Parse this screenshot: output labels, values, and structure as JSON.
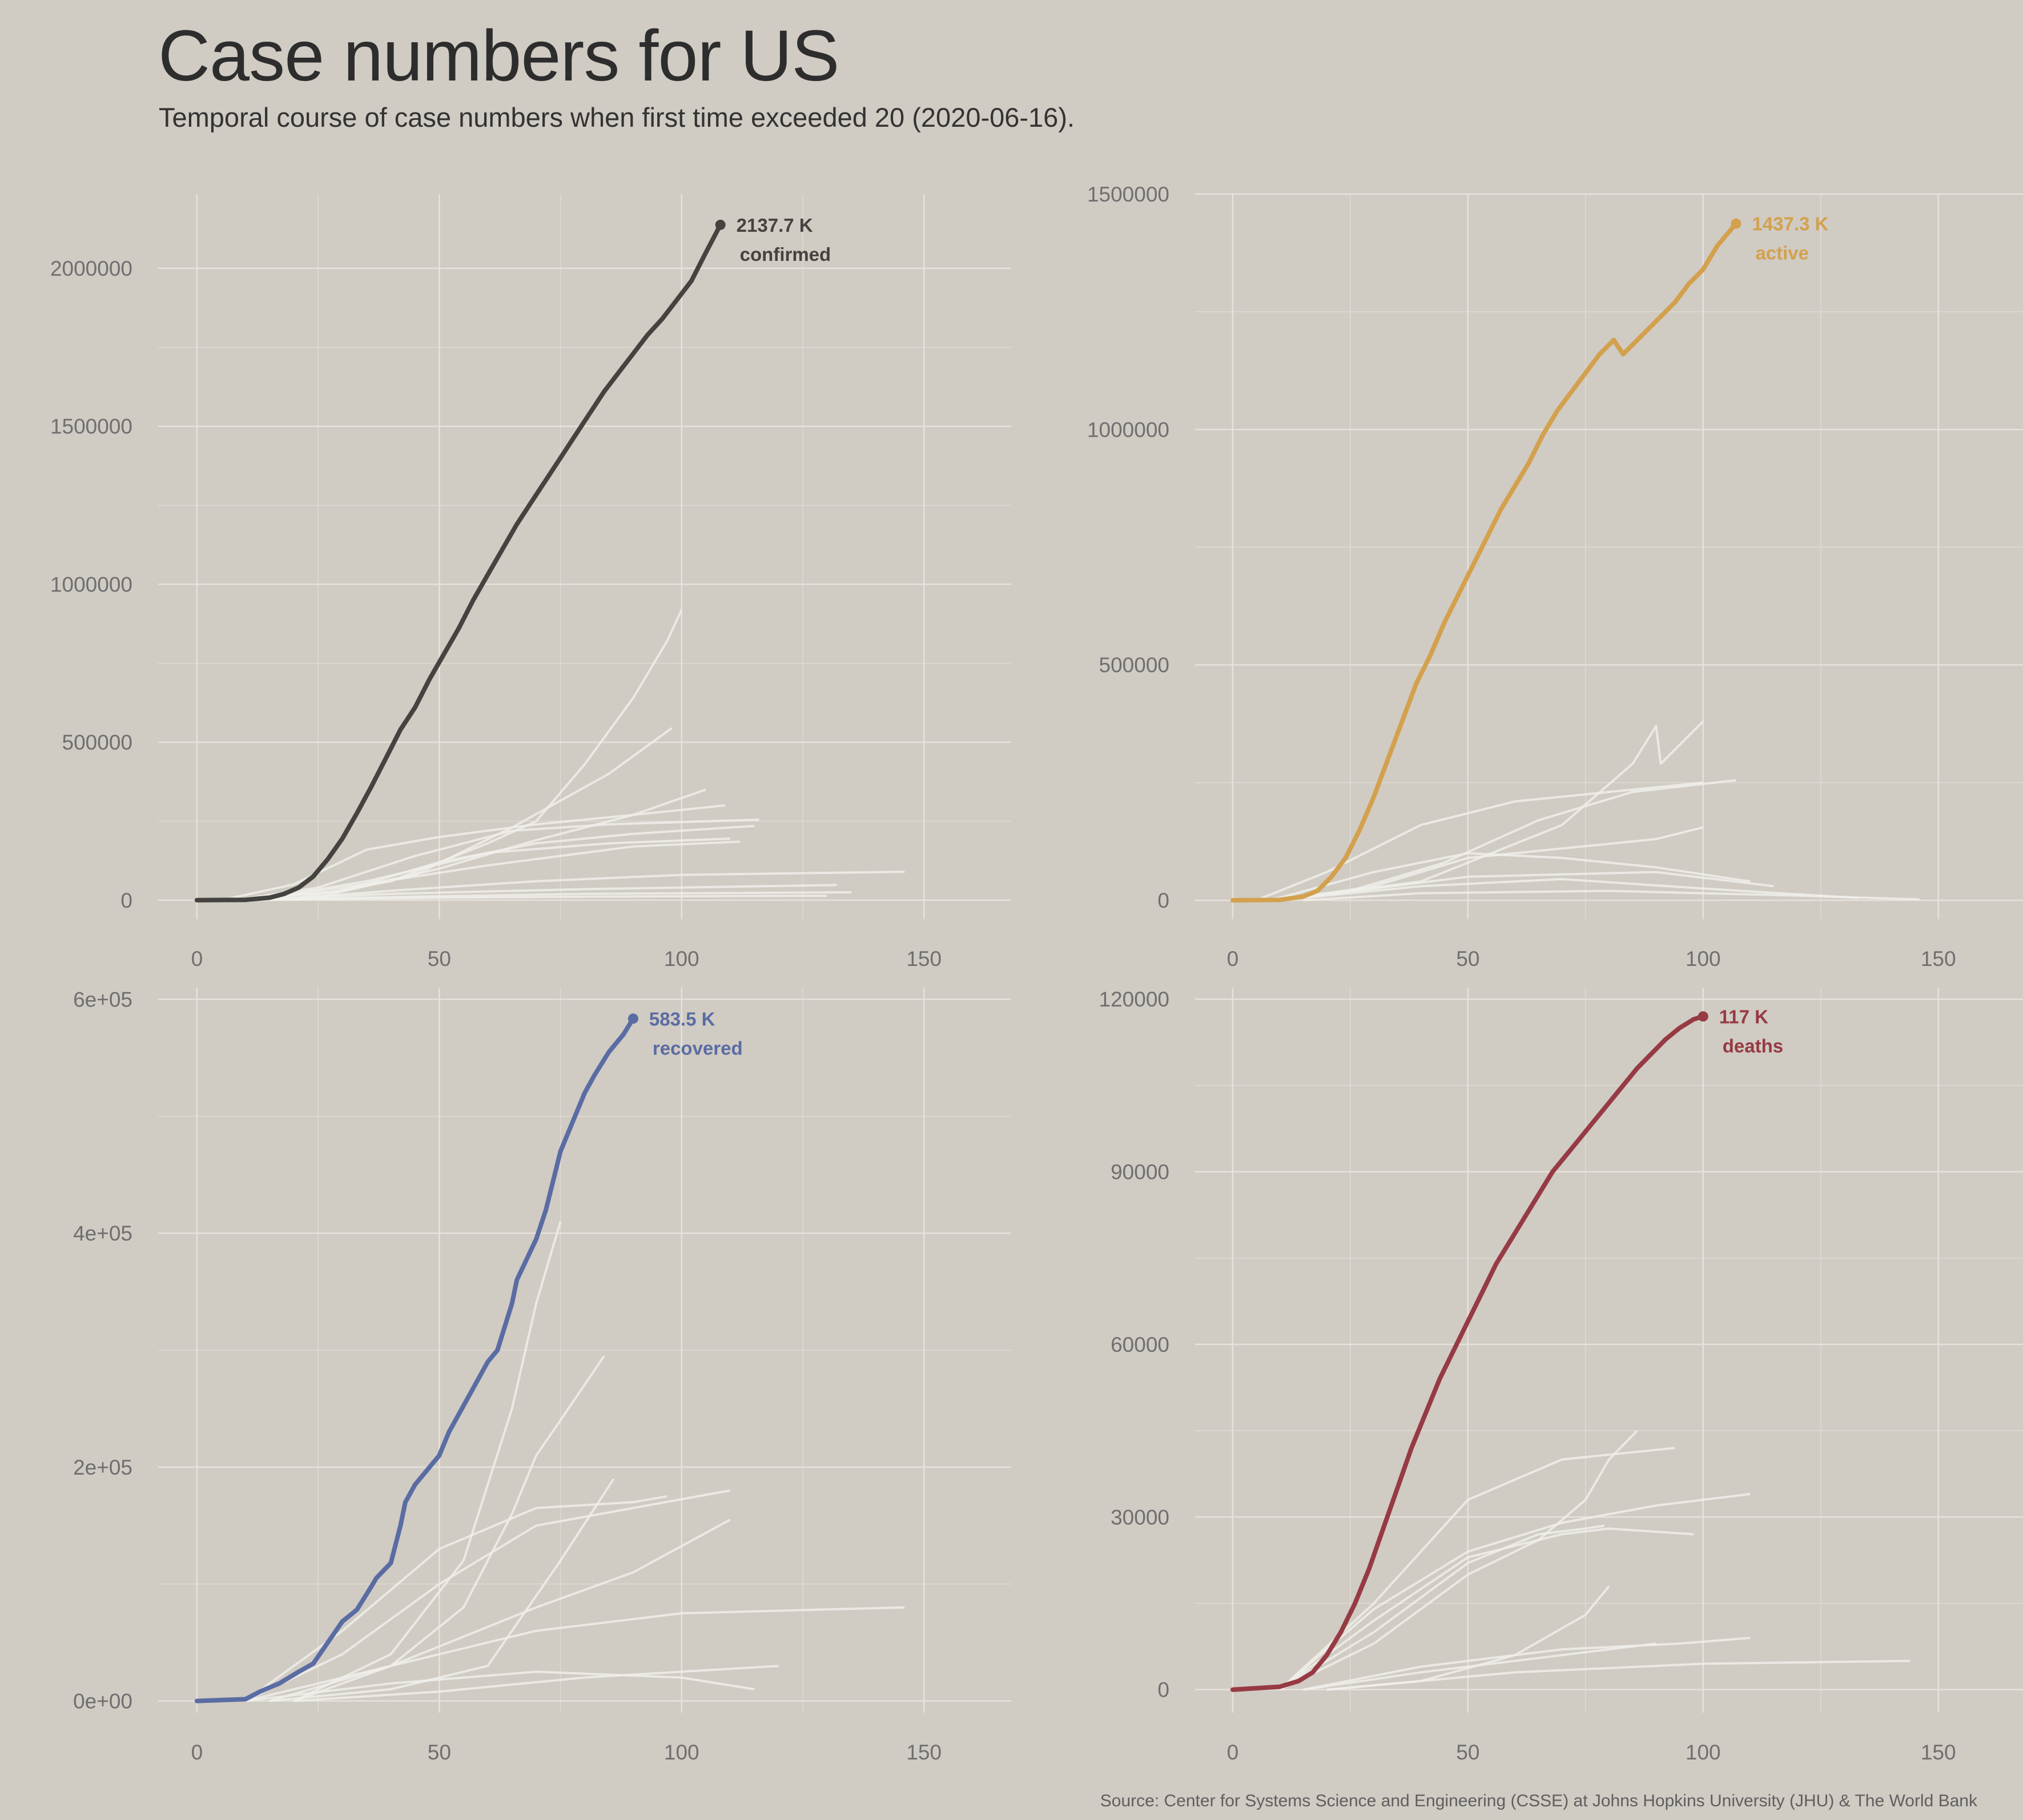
{
  "title": "Case numbers for US",
  "subtitle": "Temporal course of case numbers when first time exceeded 20 (2020-06-16).",
  "source": "Source: Center for Systems Science and Engineering (CSSE) at Johns Hopkins University (JHU) & The World Bank",
  "colors": {
    "background": "#d0cbc3",
    "grid": "#e6e2dc",
    "other_lines": "#f0eeea",
    "confirmed": "#454340",
    "active": "#d3a14d",
    "recovered": "#5a6ca3",
    "deaths": "#963a43"
  },
  "chart_data": [
    {
      "type": "line",
      "metric": "confirmed",
      "color": "#454340",
      "xlim": [
        -8,
        168
      ],
      "ylim": [
        -60000,
        2235000
      ],
      "x_ticks": [
        0,
        50,
        100,
        150
      ],
      "x_tick_labels": [
        "0",
        "50",
        "100",
        "150"
      ],
      "y_ticks": [
        0,
        500000,
        1000000,
        1500000,
        2000000
      ],
      "y_tick_labels": [
        "0",
        "500000",
        "1000000",
        "1500000",
        "2000000"
      ],
      "annotation": {
        "value": "2137.7 K",
        "label": "confirmed"
      },
      "series": [
        {
          "name": "confirmed",
          "x": [
            0,
            10,
            15,
            18,
            21,
            24,
            27,
            30,
            33,
            36,
            39,
            42,
            45,
            48,
            51,
            54,
            57,
            60,
            63,
            66,
            69,
            72,
            75,
            78,
            81,
            84,
            87,
            90,
            93,
            96,
            99,
            102,
            105,
            108
          ],
          "y": [
            0,
            1000,
            8000,
            20000,
            40000,
            75000,
            130000,
            195000,
            275000,
            360000,
            450000,
            540000,
            610000,
            700000,
            780000,
            860000,
            950000,
            1030000,
            1110000,
            1190000,
            1260000,
            1330000,
            1400000,
            1470000,
            1540000,
            1610000,
            1670000,
            1730000,
            1790000,
            1840000,
            1900000,
            1960000,
            2050000,
            2137700
          ]
        }
      ],
      "other_series": [
        {
          "x": [
            5,
            20,
            40,
            60,
            70,
            80,
            90,
            97,
            100
          ],
          "y": [
            0,
            5000,
            60000,
            180000,
            250000,
            430000,
            640000,
            820000,
            920000
          ]
        },
        {
          "x": [
            5,
            25,
            45,
            65,
            85,
            98
          ],
          "y": [
            0,
            10000,
            80000,
            230000,
            400000,
            545000
          ]
        },
        {
          "x": [
            10,
            30,
            50,
            70,
            90,
            105
          ],
          "y": [
            0,
            30000,
            100000,
            190000,
            270000,
            350000
          ]
        },
        {
          "x": [
            5,
            20,
            35,
            50,
            70,
            90,
            109
          ],
          "y": [
            0,
            50000,
            160000,
            200000,
            240000,
            270000,
            300000
          ]
        },
        {
          "x": [
            8,
            25,
            45,
            65,
            85,
            116
          ],
          "y": [
            0,
            40000,
            140000,
            220000,
            240000,
            255000
          ]
        },
        {
          "x": [
            10,
            30,
            50,
            70,
            90,
            115
          ],
          "y": [
            0,
            30000,
            120000,
            180000,
            210000,
            235000
          ]
        },
        {
          "x": [
            12,
            35,
            60,
            85,
            110
          ],
          "y": [
            0,
            60000,
            150000,
            180000,
            195000
          ]
        },
        {
          "x": [
            10,
            30,
            60,
            90,
            112
          ],
          "y": [
            0,
            40000,
            110000,
            170000,
            185000
          ]
        },
        {
          "x": [
            15,
            40,
            70,
            100,
            146
          ],
          "y": [
            0,
            30000,
            60000,
            80000,
            90000
          ]
        },
        {
          "x": [
            10,
            40,
            80,
            120,
            132
          ],
          "y": [
            0,
            20000,
            35000,
            45000,
            48000
          ]
        },
        {
          "x": [
            10,
            40,
            80,
            135
          ],
          "y": [
            0,
            10000,
            20000,
            25000
          ]
        },
        {
          "x": [
            10,
            50,
            90,
            130
          ],
          "y": [
            0,
            8000,
            12000,
            14000
          ]
        }
      ]
    },
    {
      "type": "line",
      "metric": "active",
      "color": "#d3a14d",
      "xlim": [
        -8,
        168
      ],
      "ylim": [
        -40000,
        1500000
      ],
      "x_ticks": [
        0,
        50,
        100,
        150
      ],
      "x_tick_labels": [
        "0",
        "50",
        "100",
        "150"
      ],
      "y_ticks": [
        0,
        500000,
        1000000,
        1500000
      ],
      "y_tick_labels": [
        "0",
        "500000",
        "1000000",
        "1500000"
      ],
      "annotation": {
        "value": "1437.3 K",
        "label": "active"
      },
      "series": [
        {
          "name": "active",
          "x": [
            0,
            10,
            15,
            18,
            21,
            24,
            27,
            30,
            33,
            36,
            39,
            42,
            45,
            48,
            51,
            54,
            57,
            60,
            63,
            66,
            69,
            72,
            75,
            78,
            81,
            83,
            85,
            88,
            91,
            94,
            97,
            100,
            103,
            107
          ],
          "y": [
            0,
            1000,
            8000,
            20000,
            50000,
            90000,
            150000,
            220000,
            300000,
            380000,
            460000,
            520000,
            590000,
            650000,
            710000,
            770000,
            830000,
            880000,
            930000,
            990000,
            1040000,
            1080000,
            1120000,
            1160000,
            1190000,
            1160000,
            1180000,
            1210000,
            1240000,
            1270000,
            1310000,
            1340000,
            1390000,
            1437300
          ]
        }
      ],
      "other_series": [
        {
          "x": [
            10,
            40,
            70,
            85,
            90,
            91,
            95,
            100
          ],
          "y": [
            0,
            40000,
            160000,
            290000,
            370000,
            290000,
            330000,
            380000
          ]
        },
        {
          "x": [
            5,
            25,
            45,
            65,
            85,
            107
          ],
          "y": [
            0,
            20000,
            80000,
            170000,
            230000,
            255000
          ]
        },
        {
          "x": [
            5,
            20,
            40,
            60,
            80,
            100
          ],
          "y": [
            0,
            60000,
            160000,
            210000,
            230000,
            250000
          ]
        },
        {
          "x": [
            10,
            30,
            50,
            70,
            90,
            100
          ],
          "y": [
            0,
            30000,
            90000,
            110000,
            130000,
            155000
          ]
        },
        {
          "x": [
            8,
            30,
            50,
            70,
            90,
            110
          ],
          "y": [
            0,
            60000,
            100000,
            90000,
            70000,
            40000
          ]
        },
        {
          "x": [
            10,
            40,
            70,
            100,
            133
          ],
          "y": [
            0,
            30000,
            45000,
            25000,
            5000
          ]
        },
        {
          "x": [
            15,
            40,
            80,
            120,
            146
          ],
          "y": [
            0,
            15000,
            20000,
            10000,
            2000
          ]
        },
        {
          "x": [
            10,
            50,
            90,
            115
          ],
          "y": [
            0,
            50000,
            60000,
            30000
          ]
        }
      ]
    },
    {
      "type": "line",
      "metric": "recovered",
      "color": "#5a6ca3",
      "xlim": [
        -8,
        168
      ],
      "ylim": [
        -10000,
        610000
      ],
      "x_ticks": [
        0,
        50,
        100,
        150
      ],
      "x_tick_labels": [
        "0",
        "50",
        "100",
        "150"
      ],
      "y_ticks": [
        0,
        200000,
        400000,
        600000
      ],
      "y_tick_labels": [
        "0e+00",
        "2e+05",
        "4e+05",
        "6e+05"
      ],
      "annotation": {
        "value": "583.5 K",
        "label": "recovered"
      },
      "series": [
        {
          "name": "recovered",
          "x": [
            0,
            10,
            13,
            17,
            21,
            24,
            27,
            30,
            33,
            36,
            37,
            40,
            42,
            43,
            45,
            47,
            50,
            52,
            54,
            56,
            58,
            60,
            62,
            65,
            66,
            70,
            72,
            75,
            78,
            80,
            82,
            85,
            88,
            90
          ],
          "y": [
            0,
            1500,
            8000,
            15000,
            25000,
            32000,
            50000,
            68000,
            78000,
            98000,
            105000,
            118000,
            150000,
            170000,
            185000,
            195000,
            210000,
            230000,
            245000,
            260000,
            275000,
            290000,
            300000,
            340000,
            360000,
            395000,
            420000,
            470000,
            500000,
            520000,
            535000,
            555000,
            570000,
            583500
          ]
        }
      ],
      "other_series": [
        {
          "x": [
            20,
            40,
            55,
            65,
            70,
            75
          ],
          "y": [
            0,
            40000,
            120000,
            250000,
            340000,
            410000
          ]
        },
        {
          "x": [
            20,
            40,
            55,
            65,
            70,
            75,
            84
          ],
          "y": [
            0,
            30000,
            80000,
            160000,
            210000,
            240000,
            295000
          ]
        },
        {
          "x": [
            10,
            30,
            50,
            70,
            90,
            97
          ],
          "y": [
            0,
            60000,
            130000,
            165000,
            170000,
            175000
          ]
        },
        {
          "x": [
            10,
            30,
            50,
            70,
            90,
            110
          ],
          "y": [
            0,
            40000,
            100000,
            150000,
            165000,
            180000
          ]
        },
        {
          "x": [
            15,
            40,
            70,
            90,
            110
          ],
          "y": [
            0,
            30000,
            80000,
            110000,
            155000
          ]
        },
        {
          "x": [
            10,
            40,
            70,
            100,
            146
          ],
          "y": [
            0,
            30000,
            60000,
            75000,
            80000
          ]
        },
        {
          "x": [
            15,
            40,
            60,
            75,
            86
          ],
          "y": [
            0,
            10000,
            30000,
            120000,
            190000
          ]
        },
        {
          "x": [
            20,
            50,
            80,
            100,
            120
          ],
          "y": [
            0,
            8000,
            20000,
            25000,
            30000
          ]
        },
        {
          "x": [
            10,
            40,
            70,
            100,
            115
          ],
          "y": [
            0,
            15000,
            25000,
            20000,
            10000
          ]
        }
      ]
    },
    {
      "type": "line",
      "metric": "deaths",
      "color": "#963a43",
      "xlim": [
        -8,
        168
      ],
      "ylim": [
        -4000,
        122000
      ],
      "x_ticks": [
        0,
        50,
        100,
        150
      ],
      "x_tick_labels": [
        "0",
        "50",
        "100",
        "150"
      ],
      "y_ticks": [
        0,
        30000,
        60000,
        90000,
        120000
      ],
      "y_tick_labels": [
        "0",
        "30000",
        "60000",
        "90000",
        "120000"
      ],
      "annotation": {
        "value": "117 K",
        "label": "deaths"
      },
      "series": [
        {
          "name": "deaths",
          "x": [
            0,
            10,
            14,
            17,
            20,
            23,
            26,
            29,
            32,
            35,
            38,
            41,
            44,
            47,
            50,
            53,
            56,
            59,
            62,
            65,
            68,
            71,
            74,
            77,
            80,
            83,
            86,
            89,
            92,
            95,
            98,
            100
          ],
          "y": [
            0,
            500,
            1500,
            3000,
            6000,
            10000,
            15000,
            21000,
            28000,
            35000,
            42000,
            48000,
            54000,
            59000,
            64000,
            69000,
            74000,
            78000,
            82000,
            86000,
            90000,
            93000,
            96000,
            99000,
            102000,
            105000,
            108000,
            110500,
            113000,
            115000,
            116500,
            117000
          ]
        }
      ],
      "other_series": [
        {
          "x": [
            10,
            30,
            50,
            65,
            75,
            80,
            86
          ],
          "y": [
            0,
            8000,
            20000,
            26000,
            33000,
            40000,
            45000
          ]
        },
        {
          "x": [
            10,
            30,
            50,
            70,
            94
          ],
          "y": [
            0,
            15000,
            33000,
            40000,
            42000
          ]
        },
        {
          "x": [
            10,
            30,
            50,
            70,
            90,
            110
          ],
          "y": [
            0,
            14000,
            24000,
            29000,
            32000,
            34000
          ]
        },
        {
          "x": [
            10,
            30,
            50,
            70,
            80,
            98
          ],
          "y": [
            0,
            12000,
            23000,
            27000,
            28000,
            27000
          ]
        },
        {
          "x": [
            10,
            30,
            50,
            65,
            75,
            79
          ],
          "y": [
            0,
            10000,
            22000,
            27000,
            28000,
            28500
          ]
        },
        {
          "x": [
            20,
            40,
            60,
            75,
            80
          ],
          "y": [
            0,
            1500,
            6000,
            13000,
            18000
          ]
        },
        {
          "x": [
            15,
            40,
            70,
            95,
            110
          ],
          "y": [
            0,
            4000,
            7000,
            8000,
            9000
          ]
        },
        {
          "x": [
            20,
            60,
            100,
            144
          ],
          "y": [
            0,
            3000,
            4500,
            5000
          ]
        },
        {
          "x": [
            15,
            40,
            70,
            90
          ],
          "y": [
            0,
            3000,
            6000,
            8000
          ]
        }
      ]
    }
  ]
}
